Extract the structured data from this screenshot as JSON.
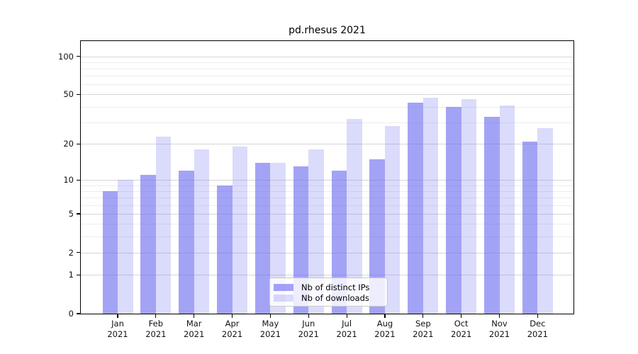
{
  "title": "pd.rhesus 2021",
  "chart_data": {
    "type": "bar",
    "title": "pd.rhesus 2021",
    "categories": [
      "Jan 2021",
      "Feb 2021",
      "Mar 2021",
      "Apr 2021",
      "May 2021",
      "Jun 2021",
      "Jul 2021",
      "Aug 2021",
      "Sep 2021",
      "Oct 2021",
      "Nov 2021",
      "Dec 2021"
    ],
    "series": [
      {
        "name": "Nb of distinct IPs",
        "color_hex": "#a6a6f6",
        "color_rgba": "rgba(106,106,240,0.62)",
        "values": [
          8,
          11,
          12,
          9,
          14,
          13,
          12,
          15,
          43,
          40,
          33,
          21
        ]
      },
      {
        "name": "Nb of downloads",
        "color_hex": "#dcdcf9",
        "color_rgba": "rgba(106,106,240,0.24)",
        "values": [
          10,
          23,
          18,
          19,
          14,
          18,
          32,
          28,
          47,
          46,
          41,
          27
        ]
      }
    ],
    "y_scale": "log10(1 + value)",
    "y_ticks": [
      100,
      50,
      20,
      10,
      5,
      2,
      1,
      0
    ],
    "y_minor_gridlines": [
      3,
      4,
      6,
      7,
      8,
      9,
      30,
      40,
      60,
      70,
      80,
      90
    ],
    "ylim": [
      0,
      132
    ],
    "xlabel": "",
    "ylabel": "",
    "grid": "horizontal major and minor gridlines",
    "legend_position": "lower center inside plot"
  },
  "legend": {
    "items": [
      {
        "label": "Nb of distinct IPs"
      },
      {
        "label": "Nb of downloads"
      }
    ]
  },
  "colors": {
    "bar_ips": "#a6a6f6",
    "bar_downloads": "#dcdcf9",
    "bar_base": "#6a6af0",
    "grid_major": "#d6d6d6",
    "grid_minor": "#ededed",
    "axis": "#000000",
    "background": "#ffffff"
  }
}
